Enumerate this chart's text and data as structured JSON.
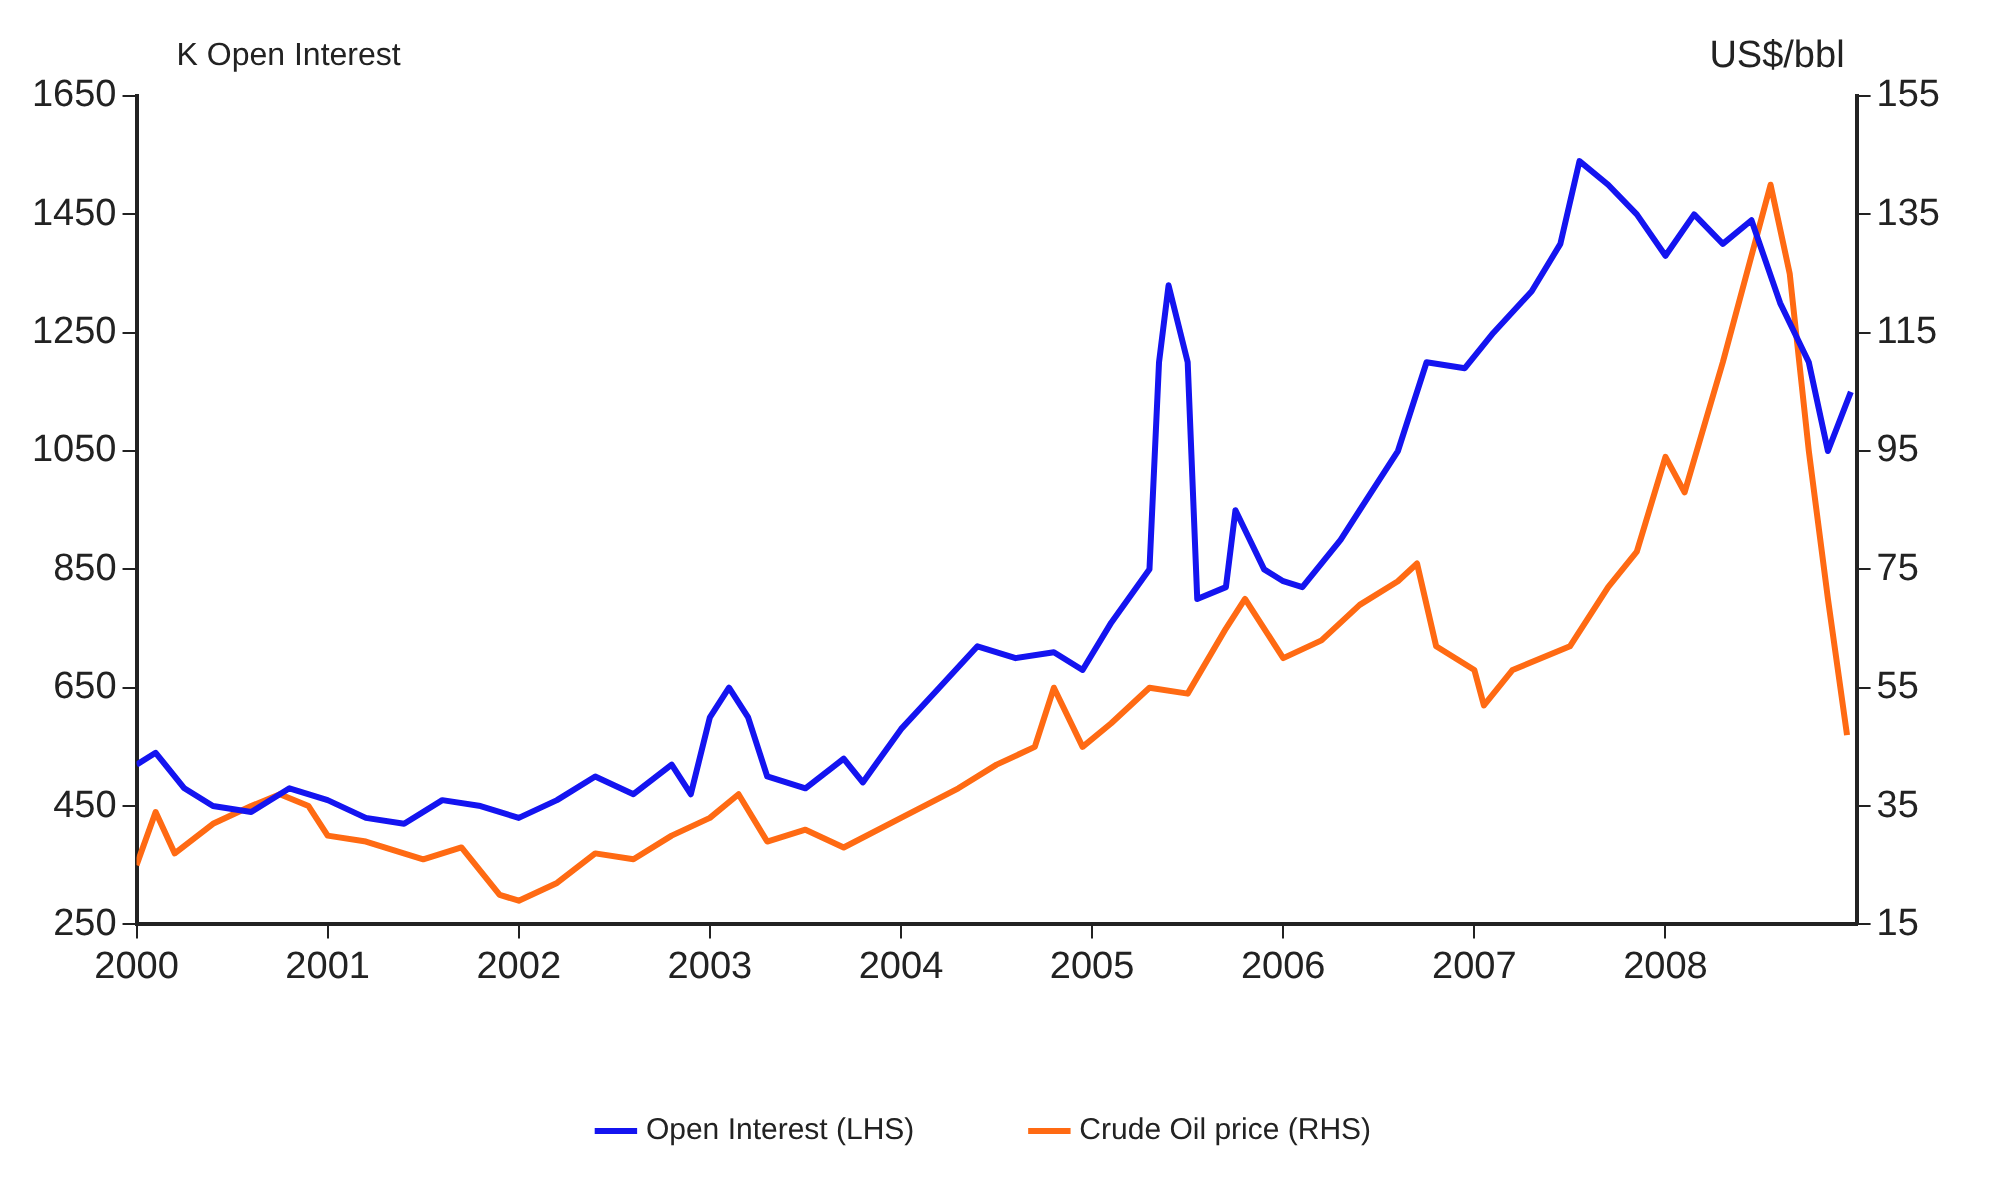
{
  "chart_data": {
    "type": "line",
    "ylabel": "K Open Interest",
    "y2label": "US$/bbl",
    "xlim": [
      2000,
      2009
    ],
    "xticks": [
      2000,
      2001,
      2002,
      2003,
      2004,
      2005,
      2006,
      2007,
      2008
    ],
    "ylim": [
      250,
      1650
    ],
    "yticks": [
      250,
      450,
      650,
      850,
      1050,
      1250,
      1450,
      1650
    ],
    "y2lim": [
      15,
      155
    ],
    "y2ticks": [
      15,
      35,
      55,
      75,
      95,
      115,
      135,
      155
    ],
    "grid": false,
    "legend": "bottom",
    "marker": "none",
    "line_style": "solid",
    "series": [
      {
        "name": "Open Interest (LHS)",
        "color": "#1414f0",
        "x": [
          2000.0,
          2000.1,
          2000.25,
          2000.4,
          2000.6,
          2000.8,
          2001.0,
          2001.2,
          2001.4,
          2001.6,
          2001.8,
          2002.0,
          2002.2,
          2002.4,
          2002.6,
          2002.8,
          2002.9,
          2003.0,
          2003.1,
          2003.2,
          2003.3,
          2003.5,
          2003.7,
          2003.8,
          2004.0,
          2004.2,
          2004.4,
          2004.6,
          2004.8,
          2004.95,
          2005.1,
          2005.3,
          2005.35,
          2005.4,
          2005.5,
          2005.55,
          2005.7,
          2005.75,
          2005.9,
          2006.0,
          2006.1,
          2006.3,
          2006.5,
          2006.6,
          2006.75,
          2006.95,
          2007.1,
          2007.3,
          2007.45,
          2007.55,
          2007.7,
          2007.85,
          2008.0,
          2008.15,
          2008.3,
          2008.45,
          2008.6,
          2008.75,
          2008.85,
          2008.97
        ],
        "values": [
          520,
          540,
          480,
          450,
          440,
          480,
          460,
          430,
          420,
          460,
          450,
          430,
          460,
          500,
          470,
          520,
          470,
          600,
          650,
          600,
          500,
          480,
          530,
          490,
          580,
          650,
          720,
          700,
          710,
          680,
          760,
          850,
          1200,
          1330,
          1200,
          800,
          820,
          950,
          850,
          830,
          820,
          900,
          1000,
          1050,
          1200,
          1190,
          1250,
          1320,
          1400,
          1540,
          1500,
          1450,
          1380,
          1450,
          1400,
          1440,
          1300,
          1200,
          1050,
          1150
        ]
      },
      {
        "name": "Crude Oil price (RHS)",
        "color": "#ff6a13",
        "axis": "y2",
        "x": [
          2000.0,
          2000.1,
          2000.2,
          2000.4,
          2000.6,
          2000.75,
          2000.9,
          2001.0,
          2001.2,
          2001.5,
          2001.7,
          2001.9,
          2002.0,
          2002.2,
          2002.4,
          2002.6,
          2002.8,
          2003.0,
          2003.15,
          2003.3,
          2003.5,
          2003.7,
          2004.0,
          2004.3,
          2004.5,
          2004.7,
          2004.8,
          2004.95,
          2005.1,
          2005.3,
          2005.5,
          2005.7,
          2005.8,
          2006.0,
          2006.2,
          2006.4,
          2006.6,
          2006.7,
          2006.8,
          2007.0,
          2007.05,
          2007.2,
          2007.5,
          2007.7,
          2007.85,
          2008.0,
          2008.1,
          2008.3,
          2008.45,
          2008.55,
          2008.65,
          2008.75,
          2008.85,
          2008.95
        ],
        "values": [
          25,
          34,
          27,
          32,
          35,
          37,
          35,
          30,
          29,
          26,
          28,
          20,
          19,
          22,
          27,
          26,
          30,
          33,
          37,
          29,
          31,
          28,
          33,
          38,
          42,
          45,
          55,
          45,
          49,
          55,
          54,
          65,
          70,
          60,
          63,
          69,
          73,
          76,
          62,
          58,
          52,
          58,
          62,
          72,
          78,
          94,
          88,
          110,
          128,
          140,
          125,
          95,
          70,
          47
        ]
      }
    ]
  }
}
